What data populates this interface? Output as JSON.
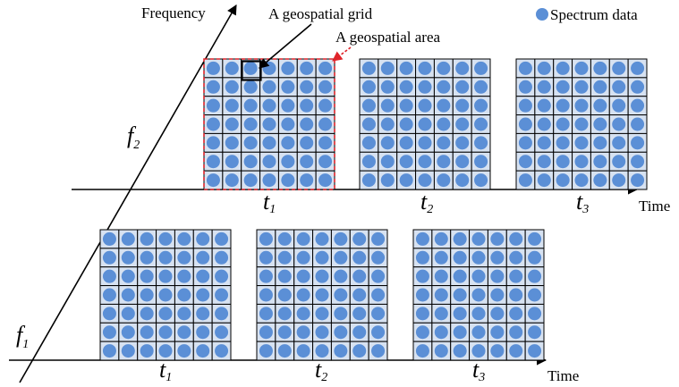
{
  "labels": {
    "frequency_axis": "Frequency",
    "time_axis_top": "Time",
    "time_axis_bottom": "Time",
    "grid_callout": "A geospatial grid",
    "area_callout": "A geospatial area",
    "legend": "Spectrum data"
  },
  "frequency_levels": [
    {
      "symbol": "f",
      "subscript": "2"
    },
    {
      "symbol": "f",
      "subscript": "1"
    }
  ],
  "time_slots": [
    {
      "symbol": "t",
      "subscript": "1"
    },
    {
      "symbol": "t",
      "subscript": "2"
    },
    {
      "symbol": "t",
      "subscript": "3"
    }
  ],
  "grid": {
    "rows": 7,
    "cols": 7
  },
  "colors": {
    "cell_fill": "#d7e2f1",
    "dot_fill": "#5b8fd6",
    "area_outline": "#e0242a",
    "grid_line": "#000000"
  }
}
